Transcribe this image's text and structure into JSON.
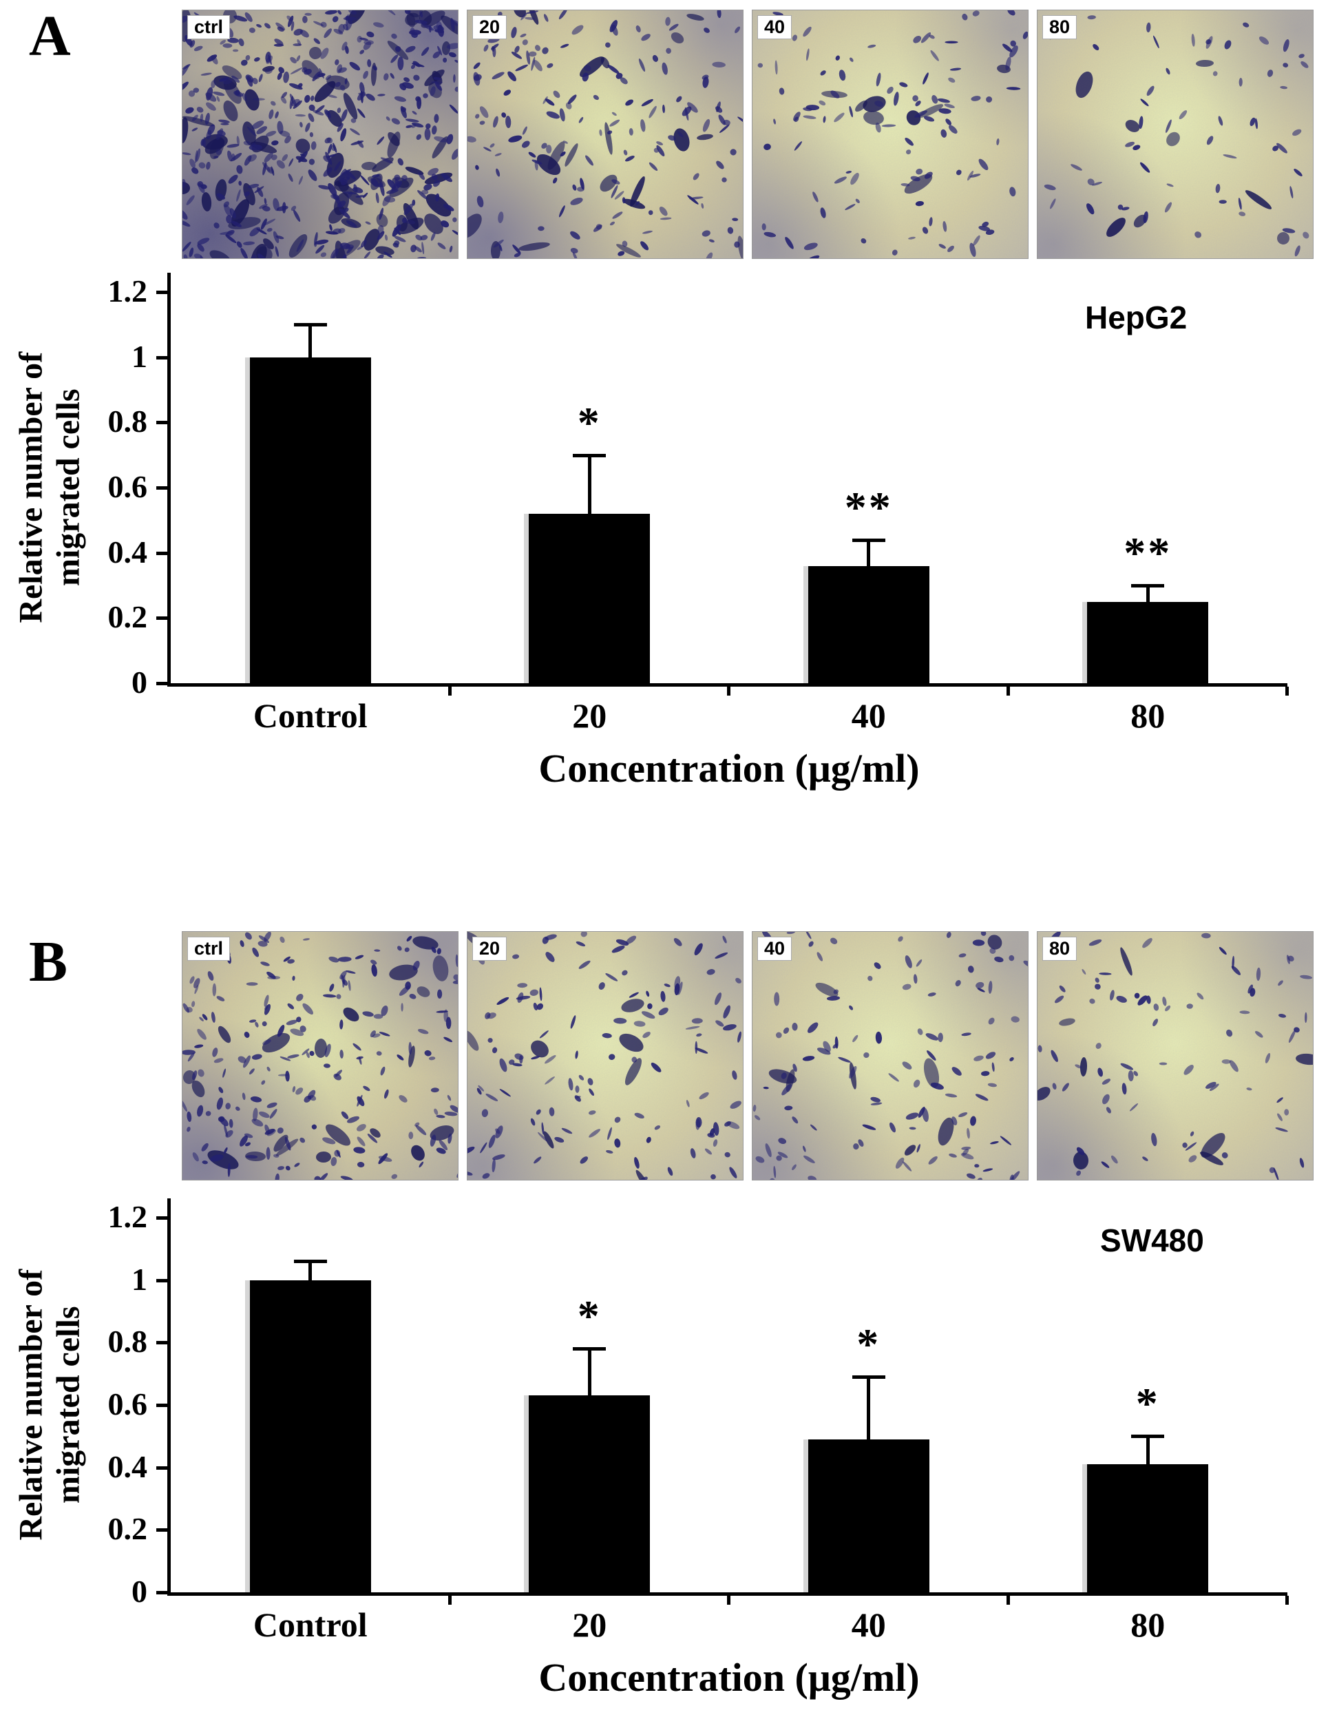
{
  "figure": {
    "panels": [
      {
        "label": "A",
        "cell_line": "HepG2",
        "micrographs": [
          {
            "label": "ctrl",
            "density": 430,
            "stain": "heavy"
          },
          {
            "label": "20",
            "density": 160,
            "stain": "medium"
          },
          {
            "label": "40",
            "density": 100,
            "stain": "light"
          },
          {
            "label": "80",
            "density": 58,
            "stain": "light"
          }
        ]
      },
      {
        "label": "B",
        "cell_line": "SW480",
        "micrographs": [
          {
            "label": "ctrl",
            "density": 210,
            "stain": "medium"
          },
          {
            "label": "20",
            "density": 130,
            "stain": "light"
          },
          {
            "label": "40",
            "density": 118,
            "stain": "light"
          },
          {
            "label": "80",
            "density": 82,
            "stain": "light"
          }
        ]
      }
    ],
    "colors": {
      "bar": "#000000",
      "cell_stain": "#232170",
      "background": "#ffffff"
    }
  },
  "chart_data": [
    {
      "type": "bar",
      "title": "HepG2",
      "categories": [
        "Control",
        "20",
        "40",
        "80"
      ],
      "values": [
        1.0,
        0.52,
        0.36,
        0.25
      ],
      "errors": [
        0.1,
        0.18,
        0.08,
        0.05
      ],
      "significance": [
        "",
        "*",
        "**",
        "**"
      ],
      "xlabel": "Concentration (μg/ml)",
      "ylabel": "Relative number of\nmigrated cells",
      "ylim": [
        0,
        1.2
      ],
      "yticks": [
        "0",
        "0.2",
        "0.4",
        "0.6",
        "0.8",
        "1",
        "1.2"
      ],
      "grid": false,
      "legend": "none",
      "bar_color": "#000000"
    },
    {
      "type": "bar",
      "title": "SW480",
      "categories": [
        "Control",
        "20",
        "40",
        "80"
      ],
      "values": [
        1.0,
        0.63,
        0.49,
        0.41
      ],
      "errors": [
        0.06,
        0.15,
        0.2,
        0.09
      ],
      "significance": [
        "",
        "*",
        "*",
        "*"
      ],
      "xlabel": "Concentration (μg/ml)",
      "ylabel": "Relative number of\nmigrated cells",
      "ylim": [
        0,
        1.2
      ],
      "yticks": [
        "0",
        "0.2",
        "0.4",
        "0.6",
        "0.8",
        "1",
        "1.2"
      ],
      "grid": false,
      "legend": "none",
      "bar_color": "#000000"
    }
  ]
}
